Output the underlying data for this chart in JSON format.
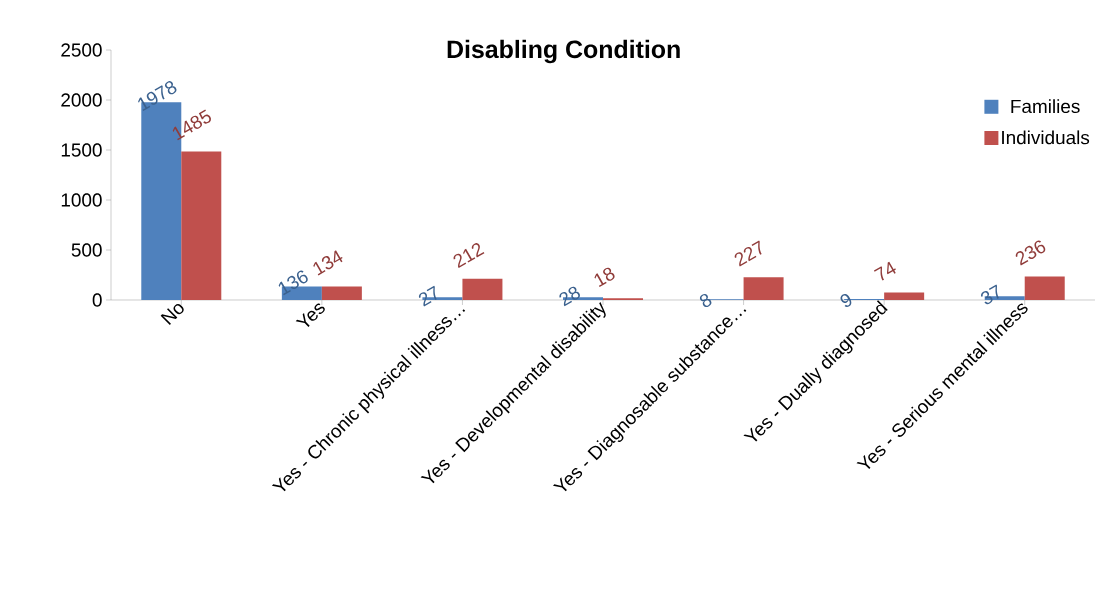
{
  "chart_data": {
    "type": "bar",
    "title": "Disabling Condition",
    "categories": [
      "No",
      "Yes",
      "Yes - Chronic physical illness…",
      "Yes - Developmental disability",
      "Yes - Diagnosable substance…",
      "Yes - Dually diagnosed",
      "Yes - Serious mental illness"
    ],
    "series": [
      {
        "name": "Families",
        "color": "#4f81bd",
        "values": [
          1978,
          136,
          27,
          28,
          8,
          9,
          37
        ]
      },
      {
        "name": "Individuals",
        "color": "#c0504d",
        "values": [
          1485,
          134,
          212,
          18,
          227,
          74,
          236
        ]
      }
    ],
    "ylim": [
      0,
      2500
    ],
    "yticks": [
      0,
      500,
      1000,
      1500,
      2000,
      2500
    ],
    "data_labels": true,
    "legend": "top right",
    "grid": false
  }
}
